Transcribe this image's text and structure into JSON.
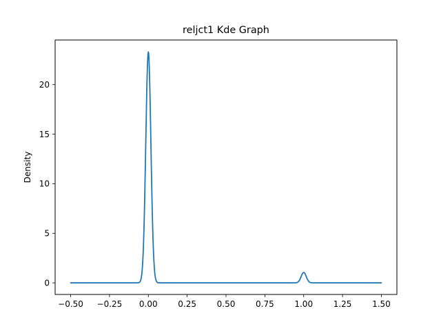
{
  "chart_data": {
    "type": "line",
    "title": "reljct1 Kde Graph",
    "xlabel": "",
    "ylabel": "Density",
    "xlim": [
      -0.6,
      1.6
    ],
    "ylim": [
      -1.17,
      24.5
    ],
    "xticks": [
      -0.5,
      -0.25,
      0.0,
      0.25,
      0.5,
      0.75,
      1.0,
      1.25,
      1.5
    ],
    "xtick_labels": [
      "−0.50",
      "−0.25",
      "0.00",
      "0.25",
      "0.50",
      "0.75",
      "1.00",
      "1.25",
      "1.50"
    ],
    "yticks": [
      0,
      5,
      10,
      15,
      20
    ],
    "ytick_labels": [
      "0",
      "5",
      "10",
      "15",
      "20"
    ],
    "grid": false,
    "legend": "none",
    "series": [
      {
        "color": "#1f77b4",
        "kde_components": [
          {
            "center": 0.0,
            "peak": 23.3,
            "sigma": 0.0165
          },
          {
            "center": 1.0,
            "peak": 1.05,
            "sigma": 0.0165
          }
        ],
        "x_range": [
          -0.5,
          1.5
        ]
      }
    ]
  }
}
